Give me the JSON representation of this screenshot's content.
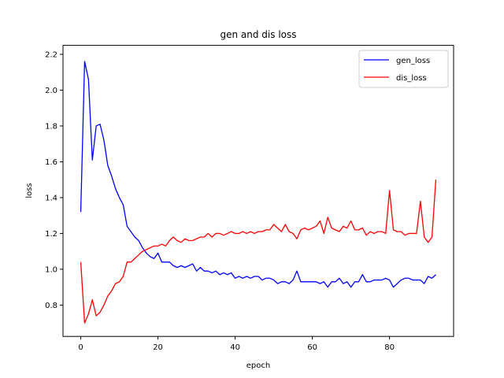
{
  "chart_data": {
    "type": "line",
    "title": "gen and dis loss",
    "xlabel": "epoch",
    "ylabel": "loss",
    "xlim": [
      -4.6,
      96.6
    ],
    "ylim": [
      0.625,
      2.25
    ],
    "xticks": [
      0,
      20,
      40,
      60,
      80
    ],
    "yticks": [
      0.8,
      1.0,
      1.2,
      1.4,
      1.6,
      1.8,
      2.0,
      2.2
    ],
    "grid": false,
    "legend_position": "top-right",
    "x": [
      0,
      1,
      2,
      3,
      4,
      5,
      6,
      7,
      8,
      9,
      10,
      11,
      12,
      13,
      14,
      15,
      16,
      17,
      18,
      19,
      20,
      21,
      22,
      23,
      24,
      25,
      26,
      27,
      28,
      29,
      30,
      31,
      32,
      33,
      34,
      35,
      36,
      37,
      38,
      39,
      40,
      41,
      42,
      43,
      44,
      45,
      46,
      47,
      48,
      49,
      50,
      51,
      52,
      53,
      54,
      55,
      56,
      57,
      58,
      59,
      60,
      61,
      62,
      63,
      64,
      65,
      66,
      67,
      68,
      69,
      70,
      71,
      72,
      73,
      74,
      75,
      76,
      77,
      78,
      79,
      80,
      81,
      82,
      83,
      84,
      85,
      86,
      87,
      88,
      89,
      90,
      91,
      92
    ],
    "series": [
      {
        "name": "gen_loss",
        "color": "#0000ff",
        "values": [
          1.32,
          2.16,
          2.06,
          1.61,
          1.8,
          1.81,
          1.72,
          1.58,
          1.52,
          1.45,
          1.4,
          1.36,
          1.24,
          1.21,
          1.18,
          1.16,
          1.12,
          1.09,
          1.07,
          1.06,
          1.09,
          1.04,
          1.04,
          1.04,
          1.02,
          1.01,
          1.02,
          1.01,
          1.02,
          1.03,
          0.99,
          1.01,
          0.99,
          0.99,
          0.98,
          0.99,
          0.97,
          0.98,
          0.97,
          0.98,
          0.95,
          0.96,
          0.95,
          0.96,
          0.95,
          0.96,
          0.96,
          0.94,
          0.95,
          0.95,
          0.94,
          0.92,
          0.93,
          0.93,
          0.92,
          0.94,
          0.99,
          0.93,
          0.93,
          0.93,
          0.93,
          0.93,
          0.92,
          0.93,
          0.9,
          0.93,
          0.93,
          0.95,
          0.92,
          0.93,
          0.9,
          0.93,
          0.93,
          0.97,
          0.93,
          0.93,
          0.94,
          0.94,
          0.94,
          0.95,
          0.94,
          0.9,
          0.92,
          0.94,
          0.95,
          0.95,
          0.94,
          0.94,
          0.94,
          0.92,
          0.96,
          0.95,
          0.97
        ]
      },
      {
        "name": "dis_loss",
        "color": "#ff0000",
        "values": [
          1.04,
          0.7,
          0.75,
          0.83,
          0.74,
          0.76,
          0.8,
          0.85,
          0.88,
          0.92,
          0.93,
          0.96,
          1.04,
          1.04,
          1.06,
          1.08,
          1.1,
          1.11,
          1.12,
          1.13,
          1.13,
          1.14,
          1.13,
          1.16,
          1.18,
          1.16,
          1.15,
          1.17,
          1.16,
          1.16,
          1.17,
          1.18,
          1.18,
          1.2,
          1.18,
          1.2,
          1.2,
          1.19,
          1.2,
          1.21,
          1.2,
          1.2,
          1.21,
          1.2,
          1.21,
          1.2,
          1.21,
          1.21,
          1.22,
          1.22,
          1.25,
          1.23,
          1.21,
          1.25,
          1.21,
          1.2,
          1.17,
          1.22,
          1.23,
          1.22,
          1.23,
          1.24,
          1.27,
          1.2,
          1.29,
          1.23,
          1.22,
          1.21,
          1.24,
          1.23,
          1.27,
          1.22,
          1.22,
          1.23,
          1.19,
          1.21,
          1.2,
          1.21,
          1.21,
          1.2,
          1.44,
          1.22,
          1.21,
          1.21,
          1.19,
          1.2,
          1.2,
          1.2,
          1.38,
          1.18,
          1.15,
          1.18,
          1.5
        ]
      }
    ]
  }
}
